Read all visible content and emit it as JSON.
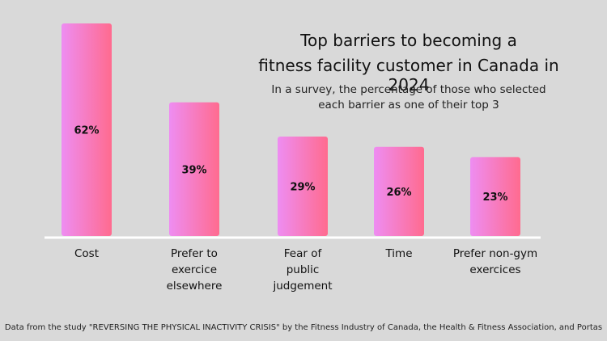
{
  "title_line1": "Top barriers to becoming a",
  "title_line2": "fitness facility customer in Canada in 2024",
  "subtitle_line1": "In a survey, the percentage of those who selected",
  "subtitle_line2": "each barrier as one of their top 3",
  "source": "Data from the study \"REVERSING THE PHYSICAL INACTIVITY CRISIS\" by the Fitness Industry of Canada, the Health & Fitness Association, and Portas",
  "colors": {
    "background": "#d9d9d9",
    "bar_left": "#ee8df2",
    "bar_right": "#ff6b8f",
    "baseline": "#ffffff"
  },
  "chart_data": {
    "type": "bar",
    "categories": [
      [
        "Cost"
      ],
      [
        "Prefer to",
        "exercice",
        "elsewhere"
      ],
      [
        "Fear of",
        "public",
        "judgement"
      ],
      [
        "Time"
      ],
      [
        "Prefer non-gym",
        "exercices"
      ]
    ],
    "values": [
      62,
      39,
      29,
      26,
      23
    ],
    "value_labels": [
      "62%",
      "39%",
      "29%",
      "26%",
      "23%"
    ],
    "ylim": [
      0,
      62
    ],
    "grid": false
  }
}
